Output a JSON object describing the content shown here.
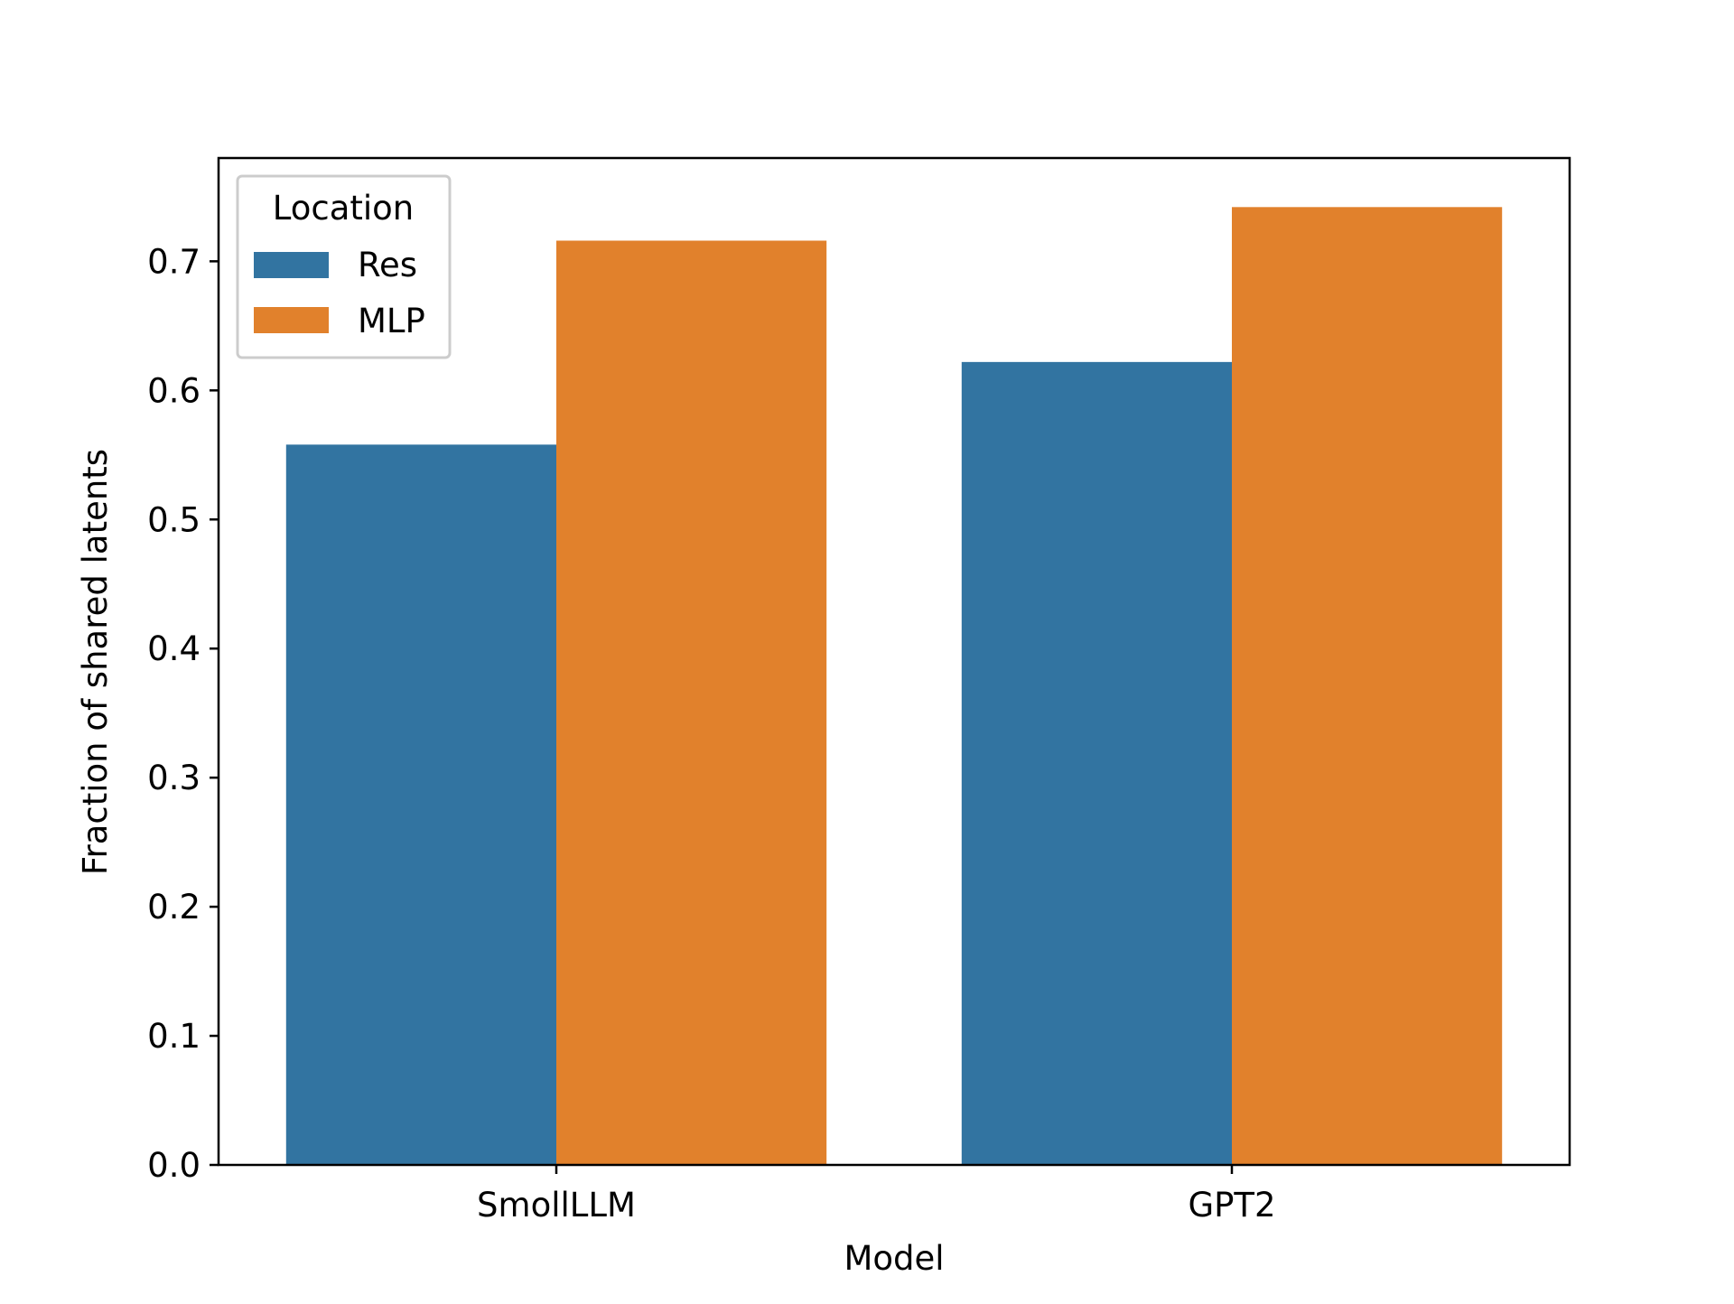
{
  "chart_data": {
    "type": "bar",
    "title": "",
    "xlabel": "Model",
    "ylabel": "Fraction of shared latents",
    "categories": [
      "SmollLLM",
      "GPT2"
    ],
    "series": [
      {
        "name": "Res",
        "values": [
          0.558,
          0.622
        ],
        "color": "#3274a1"
      },
      {
        "name": "MLP",
        "values": [
          0.716,
          0.742
        ],
        "color": "#e1812c"
      }
    ],
    "ylim": [
      0.0,
      0.78
    ],
    "yticks": [
      0.0,
      0.1,
      0.2,
      0.3,
      0.4,
      0.5,
      0.6,
      0.7
    ],
    "ytick_labels": [
      "0.0",
      "0.1",
      "0.2",
      "0.3",
      "0.4",
      "0.5",
      "0.6",
      "0.7"
    ],
    "grid": false,
    "legend": {
      "title": "Location",
      "placement": "top-left",
      "entries": [
        "Res",
        "MLP"
      ]
    }
  }
}
